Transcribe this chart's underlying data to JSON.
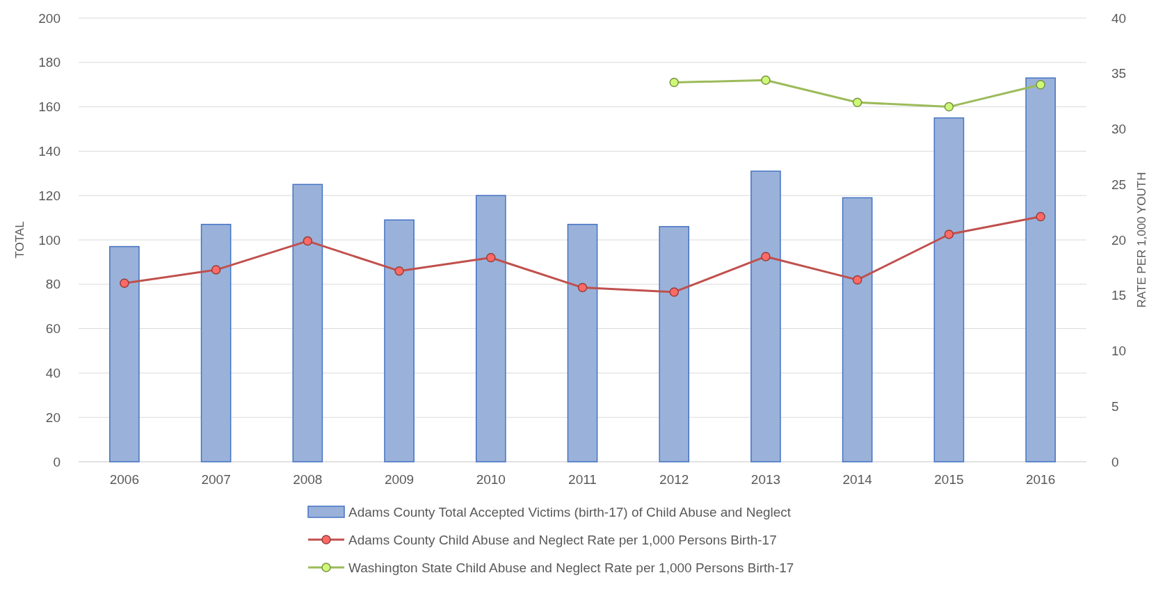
{
  "chart_data": {
    "type": "bar",
    "categories": [
      "2006",
      "2007",
      "2008",
      "2009",
      "2010",
      "2011",
      "2012",
      "2013",
      "2014",
      "2015",
      "2016"
    ],
    "ylabel": "TOTAL",
    "y2label": "RATE PER 1,000 YOUTH",
    "ylim": [
      0,
      200
    ],
    "yticks": [
      0,
      20,
      40,
      60,
      80,
      100,
      120,
      140,
      160,
      180,
      200
    ],
    "y2lim": [
      0,
      40
    ],
    "y2ticks": [
      0,
      5,
      10,
      15,
      20,
      25,
      30,
      35,
      40
    ],
    "grid": "y",
    "legend": "bottom",
    "marker": "circle",
    "series": [
      {
        "name": "Adams County Total Accepted Victims (birth-17) of Child Abuse and Neglect",
        "color": "#9ab2d9",
        "values": [
          97,
          107,
          125,
          109,
          120,
          107,
          106,
          131,
          119,
          155,
          173
        ]
      },
      {
        "type": "line",
        "axis": "y2",
        "name": "Adams County Child Abuse and Neglect Rate per 1,000 Persons Birth-17",
        "color": "#c0504d",
        "values": [
          16.1,
          17.3,
          19.9,
          17.2,
          18.4,
          15.7,
          15.3,
          18.5,
          16.4,
          20.5,
          22.1
        ]
      },
      {
        "type": "line",
        "axis": "y2",
        "name": "Washington State Child Abuse and Neglect Rate per 1,000 Persons Birth-17",
        "color": "#9bbb59",
        "values": [
          null,
          null,
          null,
          null,
          null,
          null,
          34.2,
          34.4,
          32.4,
          32.0,
          34.0
        ]
      }
    ]
  }
}
